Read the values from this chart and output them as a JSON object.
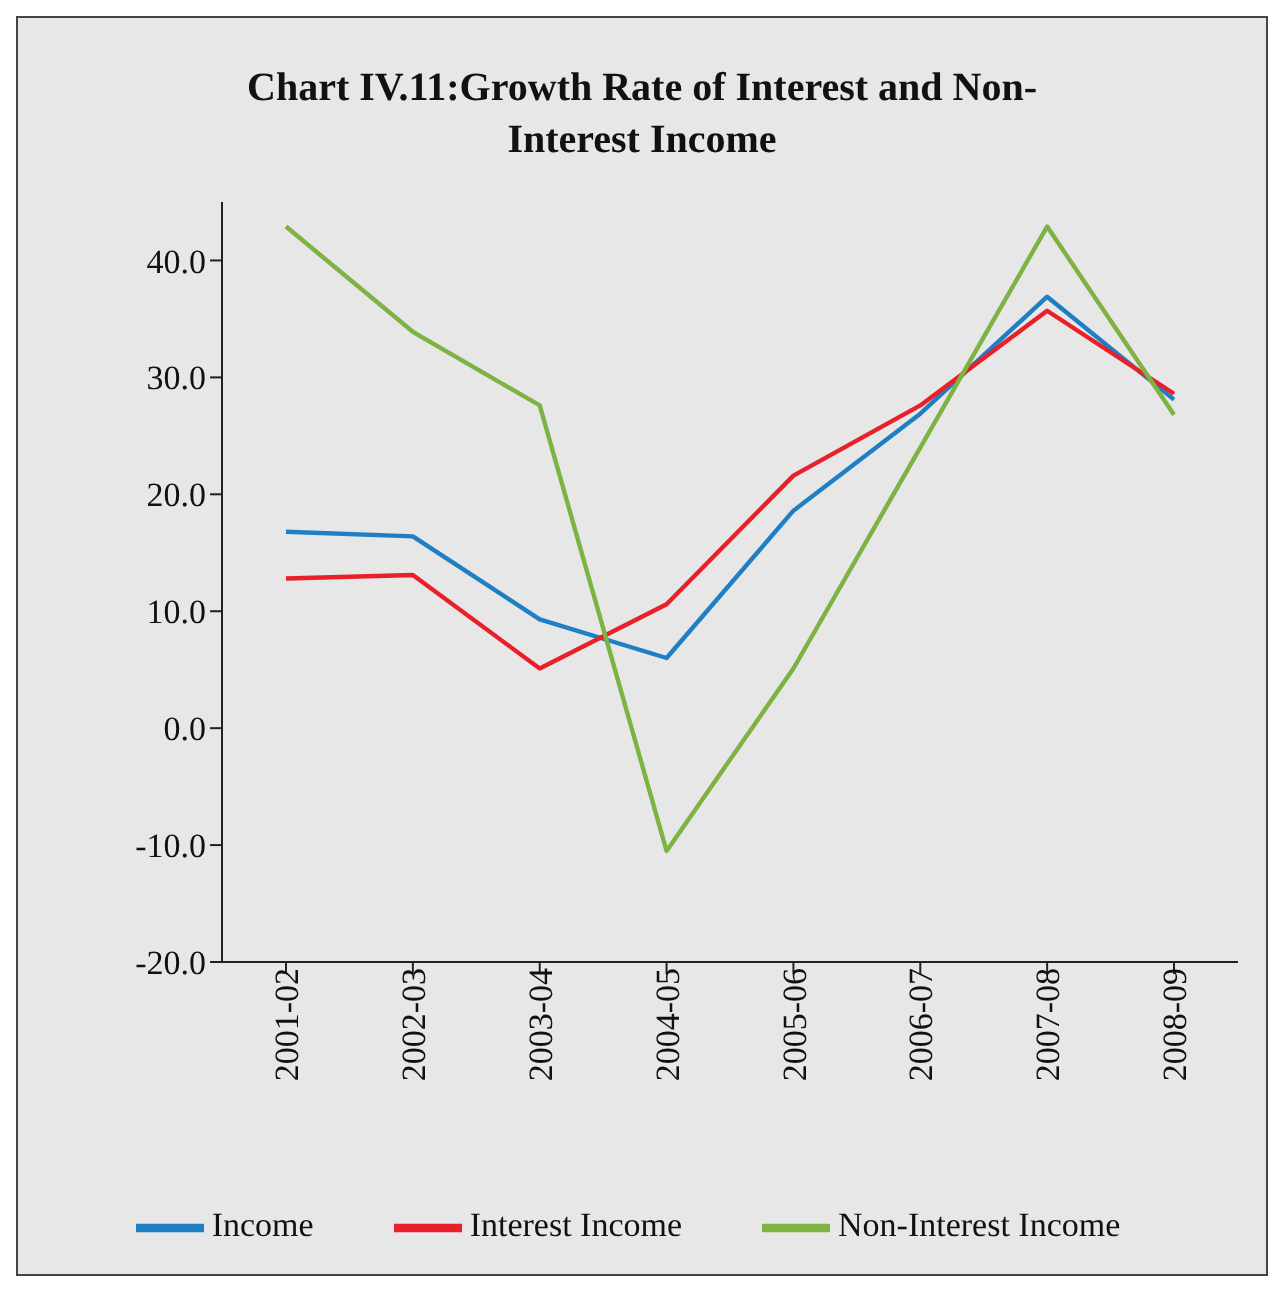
{
  "chart_data": {
    "type": "line",
    "title": "Chart IV.11:Growth Rate of Interest and Non-Interest Income",
    "categories": [
      "2001-02",
      "2002-03",
      "2003-04",
      "2004-05",
      "2005-06",
      "2006-07",
      "2007-08",
      "2008-09"
    ],
    "series": [
      {
        "name": "Income",
        "color": "#1f7fc4",
        "values": [
          16.8,
          16.4,
          9.3,
          6.0,
          18.6,
          26.9,
          36.9,
          28.1
        ]
      },
      {
        "name": "Interest Income",
        "color": "#e8202a",
        "values": [
          12.8,
          13.1,
          5.1,
          10.6,
          21.6,
          27.6,
          35.7,
          28.6
        ]
      },
      {
        "name": "Non-Interest Income",
        "color": "#7cb342",
        "values": [
          42.9,
          33.9,
          27.6,
          -10.5,
          5.1,
          24.0,
          42.9,
          26.8
        ]
      }
    ],
    "ylim": [
      -20,
      45
    ],
    "yticks": [
      {
        "value": -20,
        "label": "-20.0"
      },
      {
        "value": -10,
        "label": "-10.0"
      },
      {
        "value": 0,
        "label": "0.0"
      },
      {
        "value": 10,
        "label": "10.0"
      },
      {
        "value": 20,
        "label": "20.0"
      },
      {
        "value": 30,
        "label": "30.0"
      },
      {
        "value": 40,
        "label": "40.0"
      }
    ],
    "grid": false,
    "legend": "bottom",
    "marker": "none",
    "line_style": "solid"
  }
}
